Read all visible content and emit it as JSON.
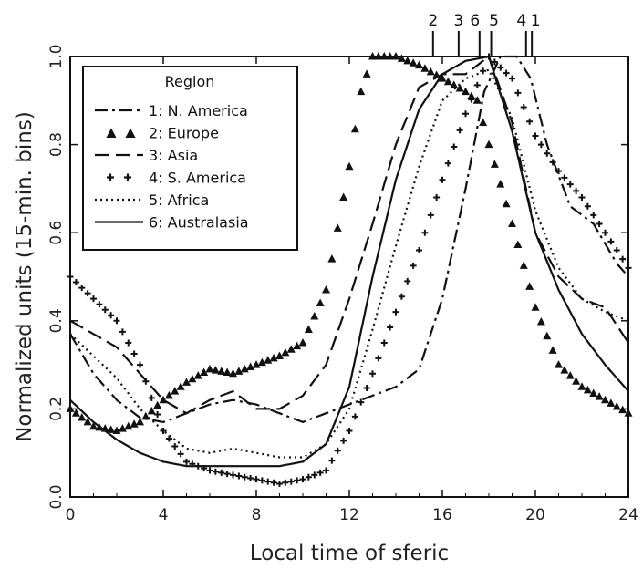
{
  "chart_data": {
    "type": "line",
    "xlabel": "Local time of sferic",
    "ylabel": "Normalized units (15-min. bins)",
    "xlim": [
      0,
      24
    ],
    "ylim": [
      0,
      1.0
    ],
    "xticks": [
      0,
      4,
      8,
      12,
      16,
      20,
      24
    ],
    "yticks": [
      0.0,
      0.2,
      0.4,
      0.6,
      0.8,
      1.0
    ],
    "grid": false,
    "legend": {
      "title": "Region",
      "placement": "top-left"
    },
    "peak_labels": [
      {
        "label": "2",
        "x": 15.6
      },
      {
        "label": "3",
        "x": 16.7
      },
      {
        "label": "6",
        "x": 17.6
      },
      {
        "label": "5",
        "x": 18.1
      },
      {
        "label": "4",
        "x": 19.6
      },
      {
        "label": "1",
        "x": 19.85
      }
    ],
    "series": [
      {
        "name": "1: N. America",
        "style": "dashdot",
        "points": [
          [
            0,
            0.37
          ],
          [
            1,
            0.28
          ],
          [
            2,
            0.22
          ],
          [
            3,
            0.18
          ],
          [
            4,
            0.17
          ],
          [
            5,
            0.19
          ],
          [
            6,
            0.21
          ],
          [
            7,
            0.22
          ],
          [
            8,
            0.21
          ],
          [
            9,
            0.19
          ],
          [
            10,
            0.17
          ],
          [
            11,
            0.19
          ],
          [
            12,
            0.21
          ],
          [
            13,
            0.23
          ],
          [
            14,
            0.25
          ],
          [
            15,
            0.29
          ],
          [
            16,
            0.45
          ],
          [
            17,
            0.7
          ],
          [
            17.8,
            0.92
          ],
          [
            18.5,
            1.0
          ],
          [
            19.2,
            1.0
          ],
          [
            19.8,
            0.95
          ],
          [
            20.5,
            0.8
          ],
          [
            21.5,
            0.66
          ],
          [
            22.5,
            0.62
          ],
          [
            23.5,
            0.53
          ],
          [
            24,
            0.5
          ]
        ]
      },
      {
        "name": "2: Europe",
        "style": "triangles",
        "points": [
          [
            0,
            0.2
          ],
          [
            1,
            0.16
          ],
          [
            2,
            0.15
          ],
          [
            3,
            0.17
          ],
          [
            4,
            0.22
          ],
          [
            5,
            0.26
          ],
          [
            6,
            0.29
          ],
          [
            7,
            0.28
          ],
          [
            8,
            0.3
          ],
          [
            9,
            0.32
          ],
          [
            10,
            0.35
          ],
          [
            11,
            0.47
          ],
          [
            12,
            0.75
          ],
          [
            12.5,
            0.92
          ],
          [
            13,
            1.0
          ],
          [
            14,
            1.0
          ],
          [
            15,
            0.98
          ],
          [
            16,
            0.95
          ],
          [
            17,
            0.92
          ],
          [
            17.5,
            0.9
          ],
          [
            18,
            0.8
          ],
          [
            19,
            0.62
          ],
          [
            20,
            0.43
          ],
          [
            21,
            0.3
          ],
          [
            22,
            0.25
          ],
          [
            23,
            0.22
          ],
          [
            24,
            0.19
          ]
        ]
      },
      {
        "name": "3: Asia",
        "style": "dashed",
        "points": [
          [
            0,
            0.4
          ],
          [
            1,
            0.37
          ],
          [
            2,
            0.34
          ],
          [
            3,
            0.28
          ],
          [
            4,
            0.22
          ],
          [
            5,
            0.19
          ],
          [
            6,
            0.22
          ],
          [
            7,
            0.24
          ],
          [
            8,
            0.2
          ],
          [
            9,
            0.2
          ],
          [
            10,
            0.23
          ],
          [
            11,
            0.3
          ],
          [
            12,
            0.45
          ],
          [
            13,
            0.62
          ],
          [
            14,
            0.8
          ],
          [
            15,
            0.93
          ],
          [
            16,
            0.96
          ],
          [
            17,
            0.96
          ],
          [
            18,
            1.0
          ],
          [
            19,
            0.85
          ],
          [
            20,
            0.6
          ],
          [
            21,
            0.5
          ],
          [
            22,
            0.45
          ],
          [
            23,
            0.43
          ],
          [
            24,
            0.35
          ]
        ]
      },
      {
        "name": "4: S. America",
        "style": "plus",
        "points": [
          [
            0,
            0.5
          ],
          [
            1,
            0.45
          ],
          [
            2,
            0.4
          ],
          [
            3,
            0.3
          ],
          [
            4,
            0.15
          ],
          [
            5,
            0.08
          ],
          [
            6,
            0.06
          ],
          [
            7,
            0.05
          ],
          [
            8,
            0.04
          ],
          [
            9,
            0.03
          ],
          [
            10,
            0.04
          ],
          [
            11,
            0.06
          ],
          [
            12,
            0.15
          ],
          [
            13,
            0.28
          ],
          [
            14,
            0.42
          ],
          [
            15,
            0.56
          ],
          [
            16,
            0.72
          ],
          [
            17,
            0.87
          ],
          [
            18,
            1.0
          ],
          [
            19,
            0.95
          ],
          [
            20,
            0.82
          ],
          [
            21,
            0.74
          ],
          [
            22,
            0.68
          ],
          [
            23,
            0.6
          ],
          [
            24,
            0.52
          ]
        ]
      },
      {
        "name": "5: Africa",
        "style": "dotted",
        "points": [
          [
            0,
            0.37
          ],
          [
            1,
            0.32
          ],
          [
            2,
            0.27
          ],
          [
            3,
            0.2
          ],
          [
            4,
            0.15
          ],
          [
            5,
            0.11
          ],
          [
            6,
            0.1
          ],
          [
            7,
            0.11
          ],
          [
            8,
            0.1
          ],
          [
            9,
            0.09
          ],
          [
            10,
            0.09
          ],
          [
            11,
            0.12
          ],
          [
            12,
            0.2
          ],
          [
            13,
            0.38
          ],
          [
            14,
            0.57
          ],
          [
            15,
            0.75
          ],
          [
            16,
            0.9
          ],
          [
            17,
            0.95
          ],
          [
            18,
            0.97
          ],
          [
            19,
            0.86
          ],
          [
            20,
            0.65
          ],
          [
            21,
            0.52
          ],
          [
            22,
            0.45
          ],
          [
            23,
            0.42
          ],
          [
            24,
            0.4
          ]
        ]
      },
      {
        "name": "6: Australasia",
        "style": "solid",
        "points": [
          [
            0,
            0.22
          ],
          [
            1,
            0.17
          ],
          [
            2,
            0.13
          ],
          [
            3,
            0.1
          ],
          [
            4,
            0.08
          ],
          [
            5,
            0.07
          ],
          [
            6,
            0.07
          ],
          [
            7,
            0.07
          ],
          [
            8,
            0.07
          ],
          [
            9,
            0.07
          ],
          [
            10,
            0.08
          ],
          [
            11,
            0.12
          ],
          [
            12,
            0.25
          ],
          [
            13,
            0.5
          ],
          [
            14,
            0.72
          ],
          [
            15,
            0.88
          ],
          [
            16,
            0.96
          ],
          [
            17,
            0.99
          ],
          [
            18,
            1.0
          ],
          [
            19,
            0.83
          ],
          [
            20,
            0.6
          ],
          [
            21,
            0.47
          ],
          [
            22,
            0.37
          ],
          [
            23,
            0.3
          ],
          [
            24,
            0.24
          ]
        ]
      }
    ]
  }
}
